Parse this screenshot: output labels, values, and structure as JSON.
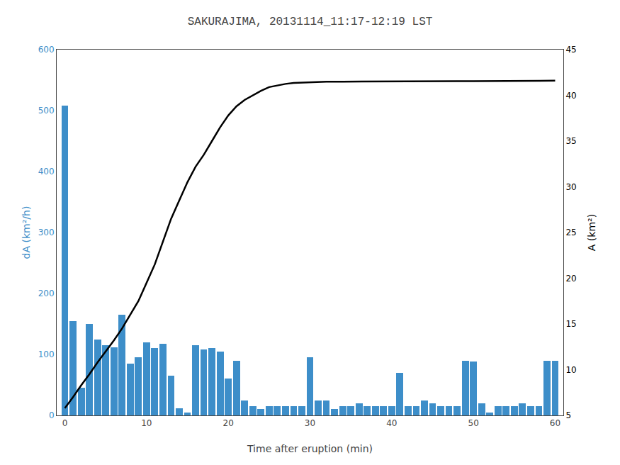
{
  "chart_data": {
    "type": "bar",
    "title": "SAKURAJIMA, 20131114_11:17-12:19 LST",
    "xlabel": "Time after eruption (min)",
    "ylabel": "dA (km²/h)",
    "y2label": "A (km²)",
    "xlim": [
      -1,
      61
    ],
    "xticks": [
      0,
      10,
      20,
      30,
      40,
      50,
      60
    ],
    "ylim": [
      0,
      600
    ],
    "yticks": [
      0,
      100,
      200,
      300,
      400,
      500,
      600
    ],
    "y2lim": [
      5,
      45
    ],
    "y2ticks": [
      5,
      10,
      15,
      20,
      25,
      30,
      35,
      40,
      45
    ],
    "grid": false,
    "series": [
      {
        "type": "bar",
        "color": "#3d8ec9",
        "x": [
          0,
          1,
          2,
          3,
          4,
          5,
          6,
          7,
          8,
          9,
          10,
          11,
          12,
          13,
          14,
          15,
          16,
          17,
          18,
          19,
          20,
          21,
          22,
          23,
          24,
          25,
          26,
          27,
          28,
          29,
          30,
          31,
          32,
          33,
          34,
          35,
          36,
          37,
          38,
          39,
          40,
          41,
          42,
          43,
          44,
          45,
          46,
          47,
          48,
          49,
          50,
          51,
          52,
          53,
          54,
          55,
          56,
          57,
          58,
          59,
          60
        ],
        "values": [
          508,
          155,
          45,
          150,
          125,
          115,
          112,
          165,
          85,
          95,
          120,
          110,
          118,
          65,
          12,
          5,
          115,
          108,
          110,
          105,
          60,
          90,
          25,
          15,
          10,
          15,
          15,
          15,
          15,
          15,
          95,
          25,
          25,
          10,
          15,
          15,
          20,
          15,
          15,
          15,
          15,
          70,
          15,
          15,
          25,
          20,
          15,
          15,
          15,
          90,
          88,
          20,
          5,
          15,
          15,
          15,
          20,
          15,
          15,
          90,
          90
        ]
      },
      {
        "type": "line",
        "color": "#000000",
        "axis": "y2",
        "x": [
          0,
          1,
          2,
          3,
          4,
          5,
          6,
          7,
          8,
          9,
          10,
          11,
          12,
          13,
          14,
          15,
          16,
          17,
          18,
          19,
          20,
          21,
          22,
          23,
          24,
          25,
          26,
          27,
          28,
          29,
          30,
          32,
          34,
          36,
          38,
          40,
          42,
          44,
          46,
          48,
          50,
          52,
          54,
          56,
          58,
          60
        ],
        "values": [
          5.8,
          7.0,
          8.3,
          9.5,
          10.8,
          12.0,
          13.2,
          14.5,
          16.0,
          17.5,
          19.5,
          21.5,
          24.0,
          26.5,
          28.5,
          30.5,
          32.2,
          33.5,
          35.0,
          36.5,
          37.8,
          38.8,
          39.5,
          40.0,
          40.5,
          40.9,
          41.1,
          41.25,
          41.35,
          41.4,
          41.45,
          41.5,
          41.5,
          41.5,
          41.5,
          41.52,
          41.53,
          41.54,
          41.55,
          41.55,
          41.56,
          41.57,
          41.57,
          41.58,
          41.58,
          41.6
        ]
      }
    ]
  }
}
